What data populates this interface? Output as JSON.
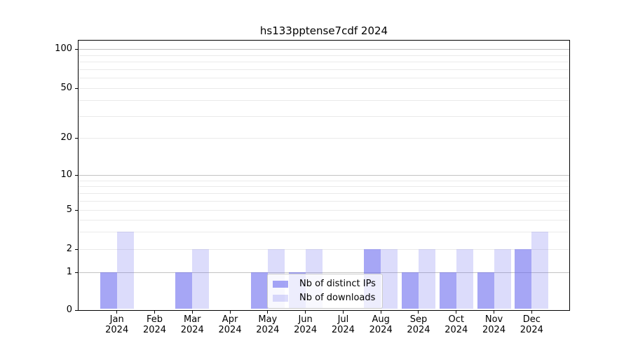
{
  "title": "hs133pptense7cdf 2024",
  "legend": {
    "position": "lower center",
    "items": [
      {
        "label": "Nb of distinct IPs",
        "color": "rgba(102,102,238,0.58)"
      },
      {
        "label": "Nb of downloads",
        "color": "rgba(102,102,238,0.23)"
      }
    ]
  },
  "axes": {
    "x_months": [
      "Jan",
      "Feb",
      "Mar",
      "Apr",
      "May",
      "Jun",
      "Jul",
      "Aug",
      "Sep",
      "Oct",
      "Nov",
      "Dec"
    ],
    "x_year": "2024",
    "y_tick_labels": [
      "0",
      "1",
      "2",
      "5",
      "10",
      "20",
      "50",
      "100"
    ]
  },
  "colors": {
    "bar_base": "#6666ee",
    "grid_major": "#c3c3c3",
    "grid_minor": "#eaeaea",
    "spine": "#000000",
    "background": "#ffffff"
  },
  "chart_data": {
    "type": "bar",
    "title": "hs133pptense7cdf 2024",
    "categories": [
      "Jan 2024",
      "Feb 2024",
      "Mar 2024",
      "Apr 2024",
      "May 2024",
      "Jun 2024",
      "Jul 2024",
      "Aug 2024",
      "Sep 2024",
      "Oct 2024",
      "Nov 2024",
      "Dec 2024"
    ],
    "series": [
      {
        "name": "Nb of distinct IPs",
        "color": "rgba(102,102,238,0.58)",
        "values": [
          1,
          0,
          1,
          0,
          1,
          1,
          0,
          2,
          1,
          1,
          1,
          2
        ]
      },
      {
        "name": "Nb of downloads",
        "color": "rgba(102,102,238,0.23)",
        "values": [
          3,
          0,
          2,
          0,
          2,
          2,
          0,
          2,
          2,
          2,
          2,
          3
        ]
      }
    ],
    "xlabel": "",
    "ylabel": "",
    "yscale": "log-like (linear 0-1, log above)",
    "yticks": [
      0,
      1,
      2,
      5,
      10,
      20,
      50,
      100
    ],
    "minor_gridlines": [
      2,
      3,
      4,
      5,
      6,
      7,
      8,
      9,
      20,
      30,
      40,
      50,
      60,
      70,
      80,
      90
    ],
    "major_gridlines": [
      1,
      10,
      100
    ],
    "ylim": [
      0,
      117
    ],
    "grid": true,
    "legend_position": "lower center"
  }
}
